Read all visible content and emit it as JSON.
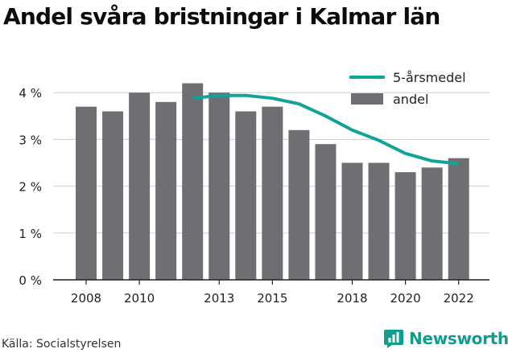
{
  "title": "Andel svåra bristningar i Kalmar län",
  "source": "Källa: Socialstyrelsen",
  "brand": {
    "name": "Newsworthy",
    "icon": "newsworthy-logo-icon",
    "color": "#0f9d8f"
  },
  "chart_data": {
    "type": "bar",
    "title": "Andel svåra bristningar i Kalmar län",
    "xlabel": "",
    "ylabel": "",
    "x": [
      2008,
      2009,
      2010,
      2011,
      2012,
      2013,
      2014,
      2015,
      2016,
      2017,
      2018,
      2019,
      2020,
      2021,
      2022
    ],
    "x_tick_labels": [
      "2008",
      "2010",
      "2013",
      "2015",
      "2018",
      "2020",
      "2022"
    ],
    "x_tick_years": [
      2008,
      2010,
      2013,
      2015,
      2018,
      2020,
      2022
    ],
    "y_ticks": [
      0,
      1,
      2,
      3,
      4
    ],
    "y_tick_labels": [
      "0 %",
      "1 %",
      "2 %",
      "3 %",
      "4 %"
    ],
    "ylim": [
      0,
      4.4
    ],
    "grid": true,
    "legend_position": "top-right",
    "series": [
      {
        "name": "andel",
        "type": "bar",
        "color": "#6f6e73",
        "values": [
          3.7,
          3.6,
          4.0,
          3.8,
          4.2,
          4.0,
          3.6,
          3.7,
          3.2,
          2.9,
          2.5,
          2.5,
          2.3,
          2.4,
          2.6
        ]
      },
      {
        "name": "5-årsmedel",
        "type": "line",
        "color": "#0fa39a",
        "values": [
          null,
          null,
          null,
          null,
          3.88,
          3.94,
          3.94,
          3.88,
          3.76,
          3.5,
          3.2,
          2.98,
          2.7,
          2.54,
          2.48
        ]
      }
    ]
  }
}
